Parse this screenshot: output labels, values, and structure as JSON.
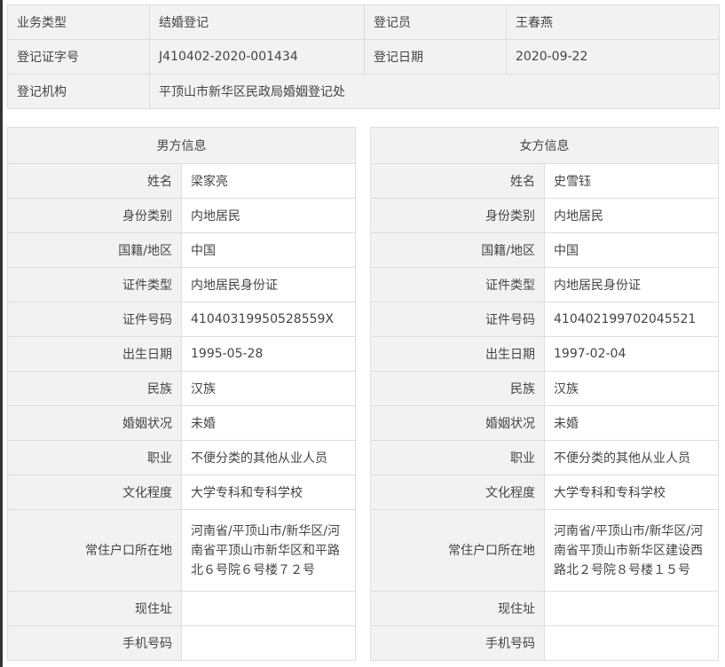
{
  "registration": {
    "business_type_label": "业务类型",
    "business_type": "结婚登记",
    "registrar_label": "登记员",
    "registrar": "王春燕",
    "cert_no_label": "登记证字号",
    "cert_no": "J410402-2020-001434",
    "date_label": "登记日期",
    "date": "2020-09-22",
    "office_label": "登记机构",
    "office": "平顶山市新华区民政局婚姻登记处"
  },
  "male": {
    "title": "男方信息",
    "rows": [
      {
        "label": "姓名",
        "value": "梁家亮"
      },
      {
        "label": "身份类别",
        "value": "内地居民"
      },
      {
        "label": "国籍/地区",
        "value": "中国"
      },
      {
        "label": "证件类型",
        "value": "内地居民身份证"
      },
      {
        "label": "证件号码",
        "value": "41040319950528559X"
      },
      {
        "label": "出生日期",
        "value": "1995-05-28"
      },
      {
        "label": "民族",
        "value": "汉族"
      },
      {
        "label": "婚姻状况",
        "value": "未婚"
      },
      {
        "label": "职业",
        "value": "不便分类的其他从业人员"
      },
      {
        "label": "文化程度",
        "value": "大学专科和专科学校"
      },
      {
        "label": "常住户口所在地",
        "value": "河南省/平顶山市/新华区/河南省平顶山市新华区和平路北６号院６号楼７２号"
      },
      {
        "label": "现住址",
        "value": ""
      },
      {
        "label": "手机号码",
        "value": ""
      }
    ]
  },
  "female": {
    "title": "女方信息",
    "rows": [
      {
        "label": "姓名",
        "value": "史雪钰"
      },
      {
        "label": "身份类别",
        "value": "内地居民"
      },
      {
        "label": "国籍/地区",
        "value": "中国"
      },
      {
        "label": "证件类型",
        "value": "内地居民身份证"
      },
      {
        "label": "证件号码",
        "value": "410402199702045521"
      },
      {
        "label": "出生日期",
        "value": "1997-02-04"
      },
      {
        "label": "民族",
        "value": "汉族"
      },
      {
        "label": "婚姻状况",
        "value": "未婚"
      },
      {
        "label": "职业",
        "value": "不便分类的其他从业人员"
      },
      {
        "label": "文化程度",
        "value": "大学专科和专科学校"
      },
      {
        "label": "常住户口所在地",
        "value": "河南省/平顶山市/新华区/河南省平顶山市新华区建设西路北２号院８号楼１５号"
      },
      {
        "label": "现住址",
        "value": ""
      },
      {
        "label": "手机号码",
        "value": ""
      }
    ]
  }
}
